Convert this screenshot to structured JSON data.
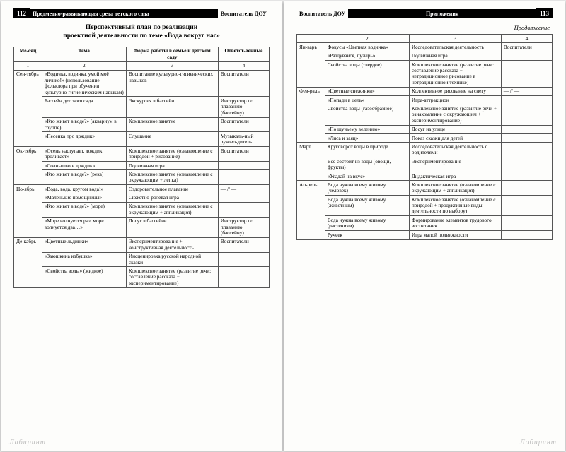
{
  "left": {
    "page_num": "112",
    "section": "Предметно-развивающая среда детского сада",
    "logo": "Воспитатель ДОУ",
    "title_l1": "Перспективный план по реализации",
    "title_l2": "проектной деятельности по теме «Вода вокруг нас»",
    "head": {
      "c1": "Ме-сяц",
      "c2": "Тема",
      "c3": "Форма работы в семье и детском саду",
      "c4": "Ответст-венные"
    },
    "numrow": {
      "c1": "1",
      "c2": "2",
      "c3": "3",
      "c4": "4"
    },
    "months": [
      {
        "name": "Сен-тябрь",
        "rows": [
          {
            "t": "«Водичка, водичка, умой моё личико!» (использование фольклора при обучении культурно-гигиеническим навыкам)",
            "f": "Воспитание культурно-гигиенических навыков",
            "r": "Воспитатели"
          },
          {
            "t": "Бассейн детского сада",
            "f": "Экскурсия в бассейн",
            "r": "Инструктор по плаванию (бассейну)"
          },
          {
            "t": "«Кто живет в воде?» (аквариум в группе)",
            "f": "Комплексное занятие",
            "r": "Воспитатели"
          },
          {
            "t": "«Песенка про дождик»",
            "f": "Слушание",
            "r": "Музыкаль-ный руково-дитель"
          }
        ]
      },
      {
        "name": "Ок-тябрь",
        "rows": [
          {
            "t": "«Осень наступает, дождик проливает»",
            "f": "Комплексное занятие (ознакомление с природой + рисование)",
            "r": "Воспитатели"
          },
          {
            "t": "«Солнышко и дождик»",
            "f": "Подвижная игра",
            "r": ""
          },
          {
            "t": "«Кто живет в воде?» (река)",
            "f": "Комплексное занятие (ознакомление с окружающим + лепка)",
            "r": ""
          }
        ]
      },
      {
        "name": "Но-ябрь",
        "rows": [
          {
            "t": "«Вода, вода, кругом вода!»",
            "f": "Оздоровительное плавание",
            "r": "— // —"
          },
          {
            "t": "«Маленькие помощницы»",
            "f": "Сюжетно-ролевая игра",
            "r": ""
          },
          {
            "t": "«Кто живет в воде?» (море)",
            "f": "Комплексное занятие (ознакомление с окружающим + аппликация)",
            "r": ""
          },
          {
            "t": "«Море волнуется раз, море волнуется два…»",
            "f": "Досуг в бассейне",
            "r": "Инструктор по плаванию (бассейну)"
          }
        ]
      },
      {
        "name": "Де-кабрь",
        "rows": [
          {
            "t": "«Цветные льдинки»",
            "f": "Экспериментирование + конструктивная деятельность",
            "r": "Воспитатели"
          },
          {
            "t": "«Заюшкина избушка»",
            "f": "Инсценировка русской народной сказки",
            "r": ""
          },
          {
            "t": "«Свойства воды» (жидкое)",
            "f": "Комплексное занятие (развитие речи: составление рассказа + экспериментирование)",
            "r": ""
          }
        ]
      }
    ],
    "wm": "Лабиринт"
  },
  "right": {
    "page_num": "113",
    "section": "Приложения",
    "logo": "Воспитатель ДОУ",
    "cont": "Продолжение",
    "numrow": {
      "c1": "1",
      "c2": "2",
      "c3": "3",
      "c4": "4"
    },
    "months": [
      {
        "name": "Ян-варь",
        "rows": [
          {
            "t": "Фокусы «Цветная водичка»",
            "f": "Исследовательская деятельность",
            "r": "Воспитатели"
          },
          {
            "t": "«Раздувайся, пузырь»",
            "f": "Подвижная игра",
            "r": ""
          },
          {
            "t": "Свойства воды (твердое)",
            "f": "Комплексное занятие (развитие речи: составление рассказа + нетрадиционное рисование в нетрадиционной технике)",
            "r": ""
          }
        ]
      },
      {
        "name": "Фев-раль",
        "rows": [
          {
            "t": "«Цветные снежинки»",
            "f": "Коллективное рисование на снегу",
            "r": "— // —"
          },
          {
            "t": "«Попади в цель»",
            "f": "Игра-аттракцион",
            "r": ""
          },
          {
            "t": "Свойства воды (газообразное)",
            "f": "Комплексное занятие (развитие речи + ознакомление с окружающим + экспериментирование)",
            "r": ""
          },
          {
            "t": "«По щучьему велению»",
            "f": "Досуг на улице",
            "r": ""
          },
          {
            "t": "«Лиса и заяц»",
            "f": "Показ сказки для детей",
            "r": ""
          }
        ]
      },
      {
        "name": "Март",
        "rows": [
          {
            "t": "Круговорот воды в природе",
            "f": "Исследовательская деятельность с родителями",
            "r": ""
          },
          {
            "t": "Все состоит из воды (овощи, фрукты)",
            "f": "Экспериментирование",
            "r": ""
          },
          {
            "t": "«Угадай на вкус»",
            "f": "Дидактическая игра",
            "r": ""
          }
        ]
      },
      {
        "name": "Ап-рель",
        "rows": [
          {
            "t": "Вода нужна всему живому (человек)",
            "f": "Комплексное занятие (ознакомление с окружающим + аппликация)",
            "r": ""
          },
          {
            "t": "Вода нужна всему живому (животным)",
            "f": "Комплексное занятие (ознакомление с природой + продуктивные виды деятельности по выбору)",
            "r": ""
          },
          {
            "t": "Вода нужна всему живому (растениям)",
            "f": "Формирование элементов трудового воспитания",
            "r": ""
          },
          {
            "t": "Ручеек",
            "f": "Игра малой подвижности",
            "r": ""
          }
        ]
      }
    ],
    "wm": "Лабиринт"
  }
}
